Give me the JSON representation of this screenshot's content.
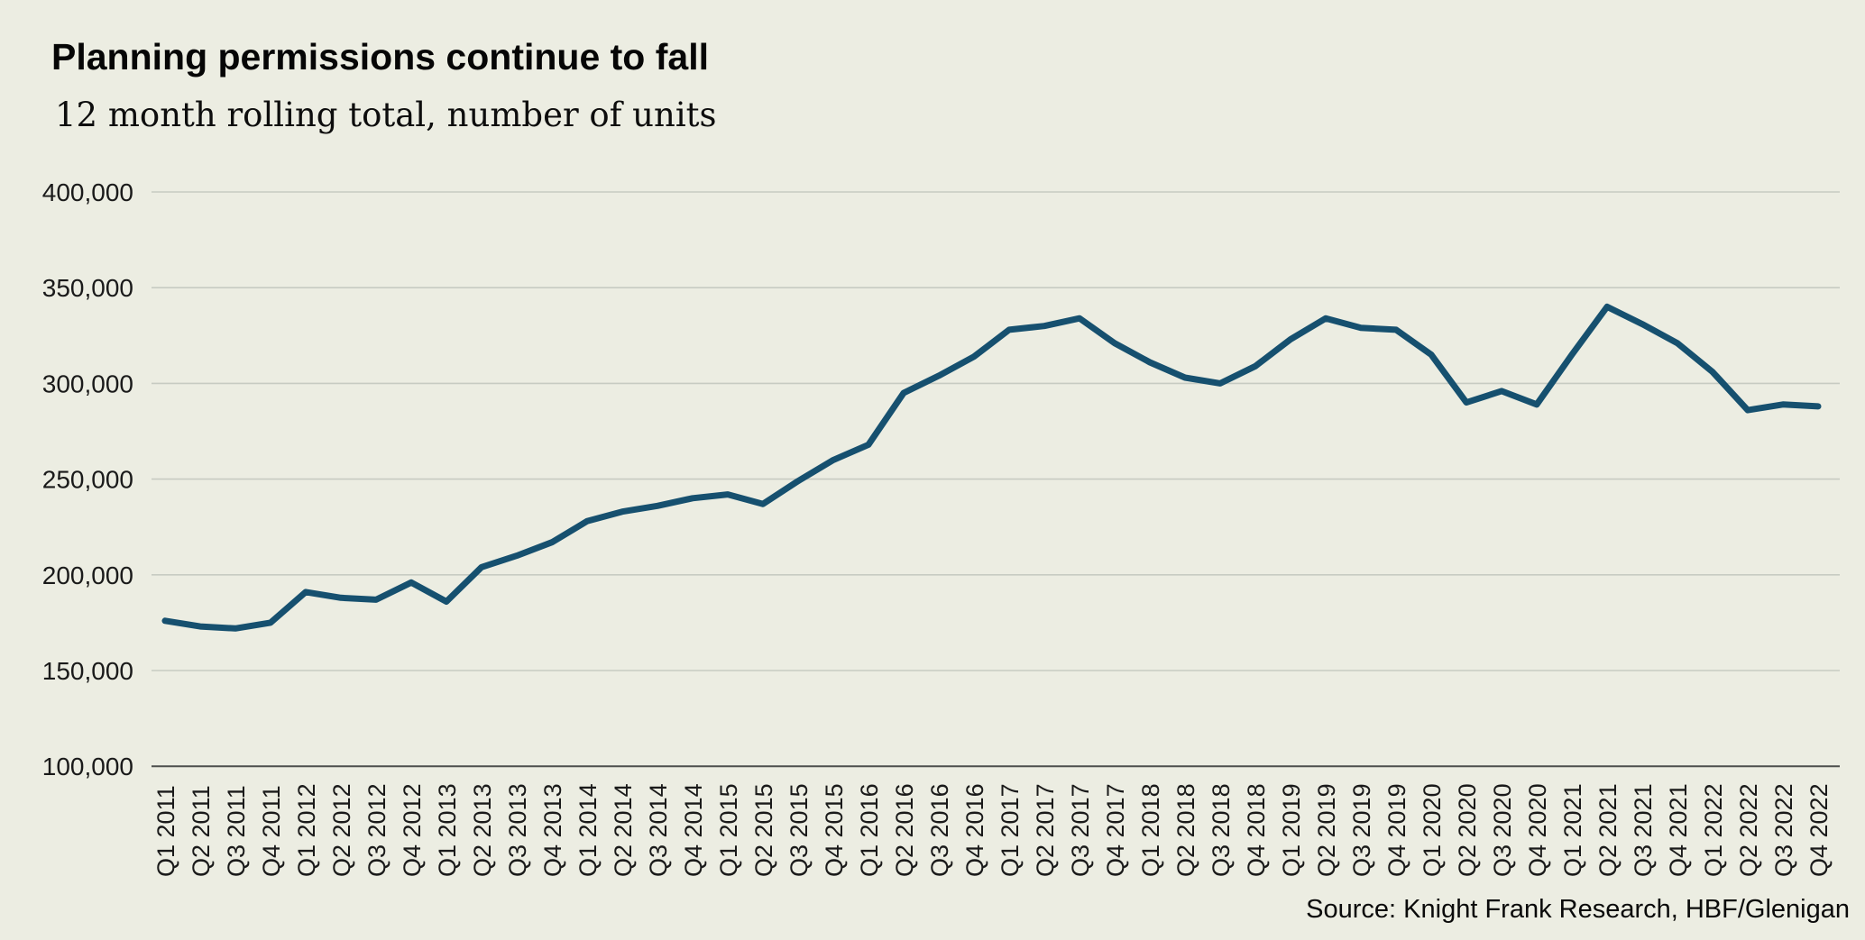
{
  "header": {
    "title": "Planning permissions continue to fall",
    "subtitle": "12 month rolling total, number of units"
  },
  "footer": {
    "source": "Source: Knight Frank Research, HBF/Glenigan"
  },
  "colors": {
    "background": "#ECEDE2",
    "line": "#16506F",
    "gridline": "#C7CBC2",
    "axis_line": "#4D4F4C",
    "tick_text": "#1A1A1A"
  },
  "chart_data": {
    "type": "line",
    "title": "Planning permissions continue to fall",
    "subtitle": "12 month rolling total, number of units",
    "source": "Source: Knight Frank Research, HBF/Glenigan",
    "grid": "horizontal",
    "legend_position": "none",
    "ylim": [
      100000,
      400000
    ],
    "ytick_step": 50000,
    "yticks": [
      400000,
      350000,
      300000,
      250000,
      200000,
      150000,
      100000
    ],
    "ytick_labels": [
      "400,000",
      "350,000",
      "300,000",
      "250,000",
      "200,000",
      "150,000",
      "100,000"
    ],
    "x_labels": [
      "Q1 2011",
      "Q2 2011",
      "Q3 2011",
      "Q4 2011",
      "Q1 2012",
      "Q2 2012",
      "Q3 2012",
      "Q4 2012",
      "Q1 2013",
      "Q2 2013",
      "Q3 2013",
      "Q4 2013",
      "Q1 2014",
      "Q2 2014",
      "Q3 2014",
      "Q4 2014",
      "Q1 2015",
      "Q2 2015",
      "Q3 2015",
      "Q4 2015",
      "Q1 2016",
      "Q2 2016",
      "Q3 2016",
      "Q4 2016",
      "Q1 2017",
      "Q2 2017",
      "Q3 2017",
      "Q4 2017",
      "Q1 2018",
      "Q2 2018",
      "Q3 2018",
      "Q4 2018",
      "Q1 2019",
      "Q2 2019",
      "Q3 2019",
      "Q4 2019",
      "Q1 2020",
      "Q2 2020",
      "Q3 2020",
      "Q4 2020",
      "Q1 2021",
      "Q2 2021",
      "Q3 2021",
      "Q4 2021",
      "Q1 2022",
      "Q2 2022",
      "Q3 2022",
      "Q4 2022"
    ],
    "series": [
      {
        "name": "Planning permissions, 12 month rolling total",
        "color": "#16506F",
        "values": [
          176000,
          173000,
          172000,
          175000,
          191000,
          188000,
          187000,
          196000,
          186000,
          204000,
          210000,
          217000,
          228000,
          233000,
          236000,
          240000,
          242000,
          237000,
          249000,
          260000,
          268000,
          295000,
          304000,
          314000,
          328000,
          330000,
          334000,
          321000,
          311000,
          303000,
          300000,
          309000,
          323000,
          334000,
          329000,
          328000,
          315000,
          290000,
          296000,
          289000,
          315000,
          340000,
          331000,
          321000,
          306000,
          286000,
          289000,
          288000
        ]
      }
    ]
  }
}
